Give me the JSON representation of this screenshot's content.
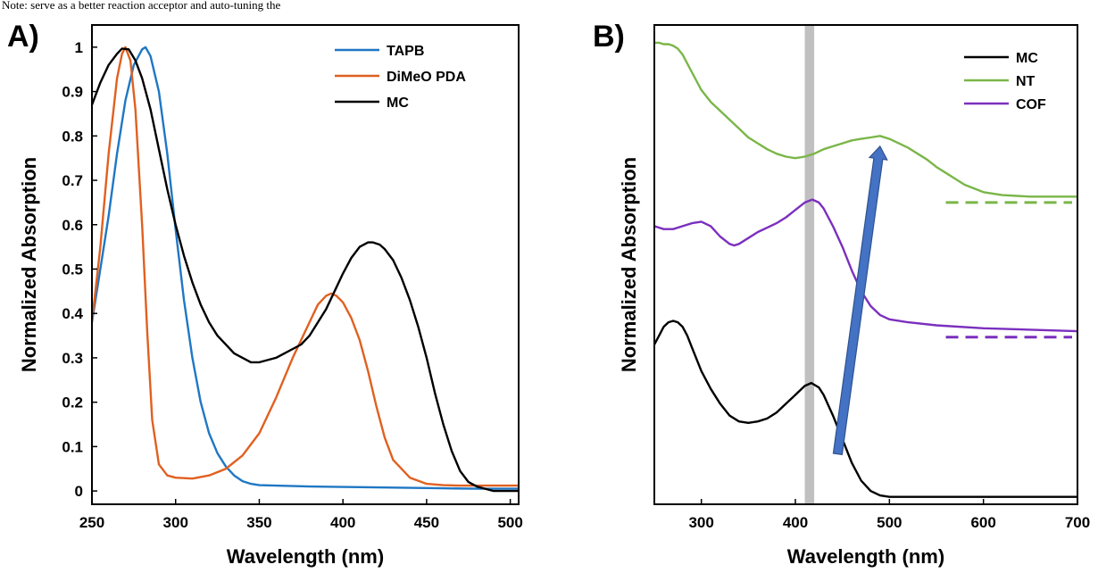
{
  "caption": "Note: serve as a better reaction acceptor and auto-tuning the",
  "chart_data": [
    {
      "type": "line",
      "panel_label": "A)",
      "xlabel": "Wavelength (nm)",
      "ylabel": "Normalized Absorption",
      "xlim": [
        250,
        505
      ],
      "ylim": [
        -0.03,
        1.05
      ],
      "xticks": [
        250,
        300,
        350,
        400,
        450,
        500
      ],
      "yticks": [
        0,
        0.1,
        0.2,
        0.3,
        0.4,
        0.5,
        0.6,
        0.7,
        0.8,
        0.9,
        1
      ],
      "ytick_labels": [
        "0",
        "0.1",
        "0.2",
        "0.3",
        "0.4",
        "0.5",
        "0.6",
        "0.7",
        "0.8",
        "0.9",
        "1"
      ],
      "legend_position": "top-right",
      "series": [
        {
          "name": "TAPB",
          "color": "#1f77c4",
          "x": [
            250,
            255,
            260,
            265,
            270,
            275,
            280,
            282,
            285,
            290,
            295,
            300,
            305,
            310,
            315,
            320,
            325,
            330,
            335,
            340,
            345,
            350,
            360,
            380,
            400,
            420,
            440,
            460,
            480,
            500,
            505
          ],
          "y": [
            0.38,
            0.5,
            0.62,
            0.76,
            0.88,
            0.96,
            0.995,
            1.0,
            0.98,
            0.9,
            0.76,
            0.59,
            0.43,
            0.3,
            0.2,
            0.13,
            0.085,
            0.055,
            0.035,
            0.022,
            0.016,
            0.013,
            0.012,
            0.01,
            0.009,
            0.008,
            0.007,
            0.006,
            0.005,
            0.005,
            0.005
          ]
        },
        {
          "name": "DiMeO PDA",
          "color": "#e06020",
          "x": [
            250,
            255,
            260,
            265,
            268,
            270,
            273,
            276,
            280,
            283,
            286,
            290,
            295,
            300,
            310,
            320,
            330,
            340,
            350,
            360,
            370,
            380,
            385,
            390,
            393,
            396,
            400,
            405,
            410,
            415,
            420,
            425,
            430,
            440,
            450,
            460,
            470,
            480,
            490,
            500,
            505
          ],
          "y": [
            0.38,
            0.55,
            0.76,
            0.93,
            0.985,
            1.0,
            0.97,
            0.86,
            0.6,
            0.36,
            0.16,
            0.06,
            0.035,
            0.03,
            0.028,
            0.035,
            0.05,
            0.08,
            0.13,
            0.21,
            0.3,
            0.38,
            0.42,
            0.44,
            0.445,
            0.44,
            0.425,
            0.39,
            0.34,
            0.27,
            0.19,
            0.12,
            0.07,
            0.03,
            0.016,
            0.013,
            0.012,
            0.012,
            0.012,
            0.012,
            0.012
          ]
        },
        {
          "name": "MC",
          "color": "#000000",
          "x": [
            250,
            255,
            260,
            265,
            268,
            272,
            276,
            280,
            285,
            290,
            295,
            300,
            305,
            310,
            315,
            320,
            325,
            330,
            335,
            340,
            345,
            350,
            355,
            360,
            365,
            370,
            375,
            380,
            385,
            390,
            395,
            400,
            405,
            410,
            415,
            418,
            422,
            425,
            430,
            435,
            440,
            445,
            450,
            455,
            460,
            465,
            470,
            475,
            480,
            485,
            490,
            495,
            500,
            505
          ],
          "y": [
            0.87,
            0.92,
            0.96,
            0.985,
            0.997,
            0.995,
            0.97,
            0.93,
            0.86,
            0.77,
            0.68,
            0.6,
            0.53,
            0.47,
            0.42,
            0.38,
            0.35,
            0.33,
            0.31,
            0.3,
            0.29,
            0.29,
            0.295,
            0.3,
            0.31,
            0.32,
            0.33,
            0.35,
            0.38,
            0.41,
            0.45,
            0.49,
            0.525,
            0.55,
            0.56,
            0.56,
            0.555,
            0.545,
            0.52,
            0.48,
            0.43,
            0.37,
            0.3,
            0.22,
            0.15,
            0.09,
            0.045,
            0.02,
            0.01,
            0.005,
            0.0,
            0.0,
            0.0,
            0.0
          ]
        }
      ]
    },
    {
      "type": "line",
      "panel_label": "B)",
      "xlabel": "Wavelength (nm)",
      "ylabel": "Normalized Absorption",
      "xlim": [
        250,
        700
      ],
      "xticks": [
        300,
        400,
        500,
        600,
        700
      ],
      "yticks_shown": false,
      "highlight_band_nm": [
        410,
        420
      ],
      "highlight_color": "#c0c0c0",
      "arrow_color": "#4472c4",
      "legend_position": "top-right",
      "series": [
        {
          "name": "MC",
          "color": "#000000",
          "x": [
            250,
            255,
            260,
            265,
            270,
            275,
            280,
            285,
            290,
            295,
            300,
            310,
            320,
            330,
            340,
            350,
            360,
            370,
            380,
            390,
            400,
            410,
            417,
            425,
            430,
            440,
            450,
            460,
            470,
            480,
            490,
            500,
            550,
            600,
            650,
            700
          ],
          "y": [
            0.52,
            0.55,
            0.58,
            0.595,
            0.6,
            0.595,
            0.58,
            0.55,
            0.51,
            0.47,
            0.43,
            0.37,
            0.32,
            0.28,
            0.26,
            0.255,
            0.26,
            0.27,
            0.29,
            0.32,
            0.35,
            0.38,
            0.39,
            0.375,
            0.35,
            0.28,
            0.2,
            0.12,
            0.06,
            0.025,
            0.01,
            0.005,
            0.005,
            0.005,
            0.005,
            0.005
          ]
        },
        {
          "name": "NT",
          "color": "#7ab648",
          "x": [
            250,
            255,
            260,
            265,
            270,
            275,
            280,
            290,
            300,
            310,
            320,
            330,
            340,
            350,
            360,
            370,
            380,
            390,
            400,
            410,
            420,
            430,
            440,
            450,
            460,
            470,
            480,
            490,
            500,
            510,
            520,
            530,
            540,
            550,
            560,
            570,
            580,
            600,
            620,
            650,
            680,
            700
          ],
          "y": [
            1.54,
            1.54,
            1.535,
            1.535,
            1.53,
            1.52,
            1.5,
            1.44,
            1.38,
            1.34,
            1.31,
            1.28,
            1.25,
            1.22,
            1.2,
            1.18,
            1.165,
            1.155,
            1.15,
            1.155,
            1.165,
            1.18,
            1.19,
            1.2,
            1.21,
            1.215,
            1.22,
            1.225,
            1.215,
            1.2,
            1.185,
            1.165,
            1.145,
            1.12,
            1.1,
            1.08,
            1.06,
            1.035,
            1.025,
            1.02,
            1.02,
            1.02
          ]
        },
        {
          "name": "COF",
          "color": "#7b2fbe",
          "x": [
            250,
            260,
            270,
            280,
            290,
            300,
            310,
            320,
            330,
            335,
            340,
            350,
            360,
            370,
            380,
            390,
            400,
            410,
            418,
            425,
            430,
            440,
            450,
            460,
            470,
            480,
            490,
            500,
            520,
            550,
            600,
            650,
            700
          ],
          "y": [
            0.92,
            0.91,
            0.91,
            0.92,
            0.93,
            0.935,
            0.92,
            0.885,
            0.86,
            0.855,
            0.86,
            0.88,
            0.9,
            0.915,
            0.93,
            0.95,
            0.975,
            1.0,
            1.01,
            1.0,
            0.98,
            0.92,
            0.85,
            0.77,
            0.7,
            0.65,
            0.62,
            0.605,
            0.595,
            0.585,
            0.575,
            0.57,
            0.565
          ]
        }
      ],
      "baselines": [
        {
          "series": "NT",
          "color": "#7ab648",
          "y": 1.0,
          "x": [
            560,
            700
          ]
        },
        {
          "series": "COF",
          "color": "#7b2fbe",
          "y": 0.545,
          "x": [
            560,
            700
          ]
        }
      ],
      "arrow": {
        "from": [
          445,
          0.15
        ],
        "to": [
          490,
          1.19
        ]
      },
      "ylim": [
        -0.02,
        1.6
      ]
    }
  ]
}
